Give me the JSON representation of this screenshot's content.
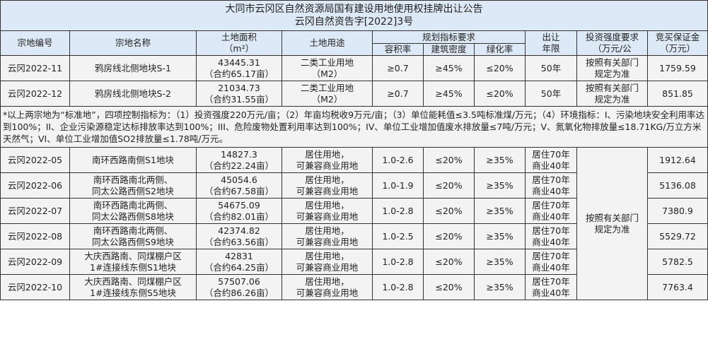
{
  "title": "大同市云冈区自然资源局国有建设用地使用权挂牌出让公告",
  "subtitle": "云冈自然资告字[2022]3号",
  "headers": {
    "parcel_id": "宗地编号",
    "parcel_name": "宗地名称",
    "area": "土地面积",
    "area_unit": "（m²）",
    "use": "土地用途",
    "planning": "规划指标要求",
    "far": "容积率",
    "density": "建筑密度",
    "green": "绿化率",
    "term1": "出让",
    "term2": "年限",
    "invest1": "投资强度要求",
    "invest2": "（万元/公",
    "deposit1": "竞买保证金",
    "deposit2": "（万元）"
  },
  "industrial_rows": [
    {
      "id": "云冈2022-11",
      "name": "鸦房线北侧地块S-1",
      "area": "43445.31",
      "area_mu": "（合约65.17亩）",
      "use1": "二类工业用地",
      "use2": "（M2）",
      "far": "≥0.7",
      "density": "≥45%",
      "green": "≤20%",
      "term": "50年",
      "invest1": "按照有关部门",
      "invest2": "规定为准",
      "deposit": "1759.59"
    },
    {
      "id": "云冈2022-12",
      "name": "鸦房线北侧地块S-2",
      "area": "21034.73",
      "area_mu": "（合约31.55亩）",
      "use1": "二类工业用地",
      "use2": "（M2）",
      "far": "≥0.7",
      "density": "≥45%",
      "green": "≤20%",
      "term": "50年",
      "invest1": "按照有关部门",
      "invest2": "规定为准",
      "deposit": "851.85"
    }
  ],
  "note": "*以上两宗地为“标准地”，四项控制指标为：（1）投资强度220万元/亩；（2）年亩均税收9万元/亩；（3）单位能耗值≤3.5吨标准煤/万元；（4）环境指标：I、污染地块安全利用率达到100%；II、企业污染源稳定达标排放率达到100%；III、危险废物处置利用率达到100%；IV、单位工业增加值废水排放量≤7吨/万元；V、氮氧化物排放量≤18.71KG/万立方米天然气；VI、单位工业增加值SO2排放量≤1.78吨/万元。",
  "residential_invest1": "按照有关部门",
  "residential_invest2": "规定为准",
  "residential_rows": [
    {
      "id": "云冈2022-05",
      "name1": "南环西路南侧S1地块",
      "name2": "",
      "area": "14827.3",
      "area_mu": "（合约22.24亩）",
      "use1": "居住用地，",
      "use2": "可兼容商业用地",
      "far": "1.0-2.6",
      "density": "≤20%",
      "green": "≥35%",
      "term1": "居住70年",
      "term2": "商业40年",
      "deposit": "1912.64"
    },
    {
      "id": "云冈2022-06",
      "name1": "南环西路南北两侧、",
      "name2": "同太公路西侧S2地块",
      "area": "45054.6",
      "area_mu": "（合约67.58亩）",
      "use1": "居住用地，",
      "use2": "可兼容商业用地",
      "far": "1.0-1.9",
      "density": "≤20%",
      "green": "≥35%",
      "term1": "居住70年",
      "term2": "商业40年",
      "deposit": "5136.08"
    },
    {
      "id": "云冈2022-07",
      "name1": "南环西路南北两侧、",
      "name2": "同太公路西侧S8地块",
      "area": "54675.09",
      "area_mu": "（合约82.01亩）",
      "use1": "居住用地，",
      "use2": "可兼容商业用地",
      "far": "1.0-2.8",
      "density": "≤20%",
      "green": "≥35%",
      "term1": "居住70年",
      "term2": "商业40年",
      "deposit": "7380.9"
    },
    {
      "id": "云冈2022-08",
      "name1": "南环西路南北两侧、",
      "name2": "同太公路西侧S9地块",
      "area": "42374.82",
      "area_mu": "（合约63.56亩）",
      "use1": "居住用地，",
      "use2": "可兼容商业用地",
      "far": "1.0-2.5",
      "density": "≤20%",
      "green": "≥35%",
      "term1": "居住70年",
      "term2": "商业40年",
      "deposit": "5529.72"
    },
    {
      "id": "云冈2022-09",
      "name1": "大庆西路南、同煤棚户区",
      "name2": "1#连接线东侧S1地块",
      "area": "42831",
      "area_mu": "（合约64.25亩）",
      "use1": "居住用地，",
      "use2": "可兼容商业用地",
      "far": "1.0-2.8",
      "density": "≤20%",
      "green": "≥35%",
      "term1": "居住70年",
      "term2": "商业40年",
      "deposit": "5782.5"
    },
    {
      "id": "云冈2022-10",
      "name1": "大庆西路南、同煤棚户区",
      "name2": "1#连接线东侧S5地块",
      "area": "57507.06",
      "area_mu": "（合约86.26亩）",
      "use1": "居住用地，",
      "use2": "可兼容商业用地",
      "far": "1.0-2.8",
      "density": "≤20%",
      "green": "≥35%",
      "term1": "居住70年",
      "term2": "商业40年",
      "deposit": "7763.4"
    }
  ],
  "colors": {
    "header_bg": "#dde9f6",
    "cell_bg": "#f3f3f3",
    "border": "#333333"
  }
}
